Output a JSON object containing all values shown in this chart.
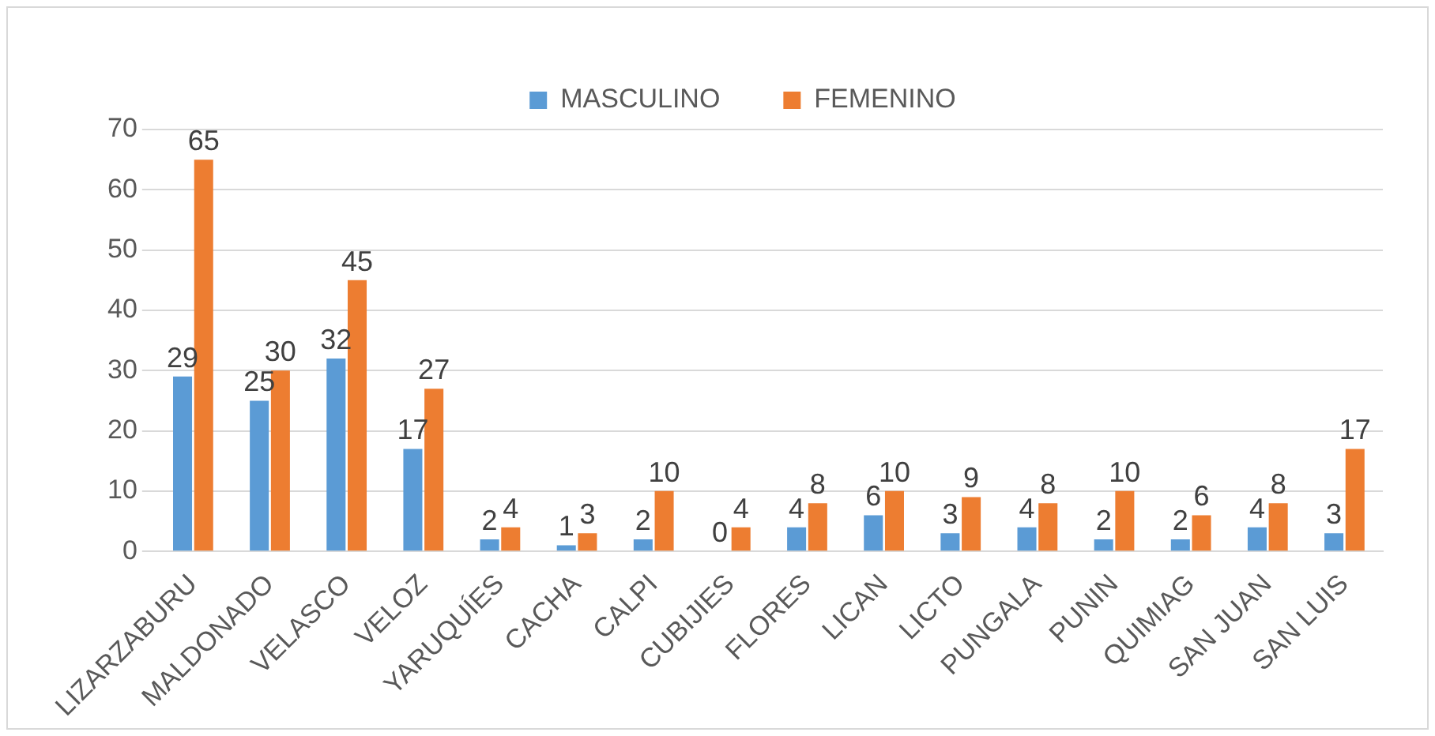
{
  "chart_data": {
    "type": "bar",
    "categories": [
      "LIZARZABURU",
      "MALDONADO",
      "VELASCO",
      "VELOZ",
      "YARUQUÍES",
      "CACHA",
      "CALPI",
      "CUBIJIES",
      "FLORES",
      "LICAN",
      "LICTO",
      "PUNGALA",
      "PUNIN",
      "QUIMIAG",
      "SAN JUAN",
      "SAN LUIS"
    ],
    "series": [
      {
        "name": "MASCULINO",
        "color": "#5b9bd5",
        "values": [
          29,
          25,
          32,
          17,
          2,
          1,
          2,
          0,
          4,
          6,
          3,
          4,
          2,
          2,
          4,
          3
        ]
      },
      {
        "name": "FEMENINO",
        "color": "#ed7d31",
        "values": [
          65,
          30,
          45,
          27,
          4,
          3,
          10,
          4,
          8,
          10,
          9,
          8,
          10,
          6,
          8,
          17
        ]
      }
    ],
    "ylim": [
      0,
      70
    ],
    "yticks": [
      0,
      10,
      20,
      30,
      40,
      50,
      60,
      70
    ],
    "grid": "y",
    "legend": "top",
    "data_labels": true
  }
}
